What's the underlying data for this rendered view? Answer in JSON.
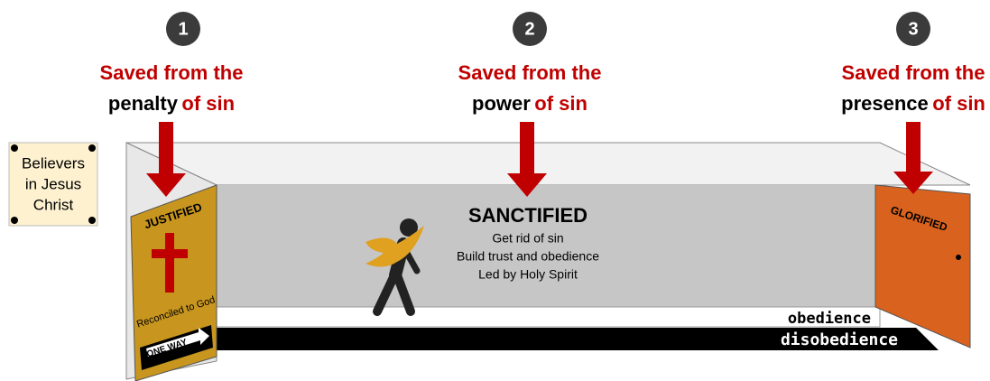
{
  "steps": [
    {
      "number": "1",
      "line1": "Saved from the",
      "word": "penalty",
      "suffix": "of sin"
    },
    {
      "number": "2",
      "line1": "Saved from the",
      "word": "power",
      "suffix": "of sin"
    },
    {
      "number": "3",
      "line1": "Saved from the",
      "word": "presence",
      "suffix": "of sin"
    }
  ],
  "sign": {
    "lines": [
      "Believers",
      "in Jesus",
      "Christ"
    ]
  },
  "justified": {
    "title": "JUSTIFIED",
    "subtitle": "Reconciled to God",
    "arrow": "ONE WAY"
  },
  "sanctified": {
    "title": "SANCTIFIED",
    "lines": [
      "Get rid of sin",
      "Build trust and obedience",
      "Led by Holy Spirit"
    ]
  },
  "glorified": {
    "title": "GLORIFIED"
  },
  "track": {
    "upper": "obedience",
    "lower": "disobedience"
  }
}
